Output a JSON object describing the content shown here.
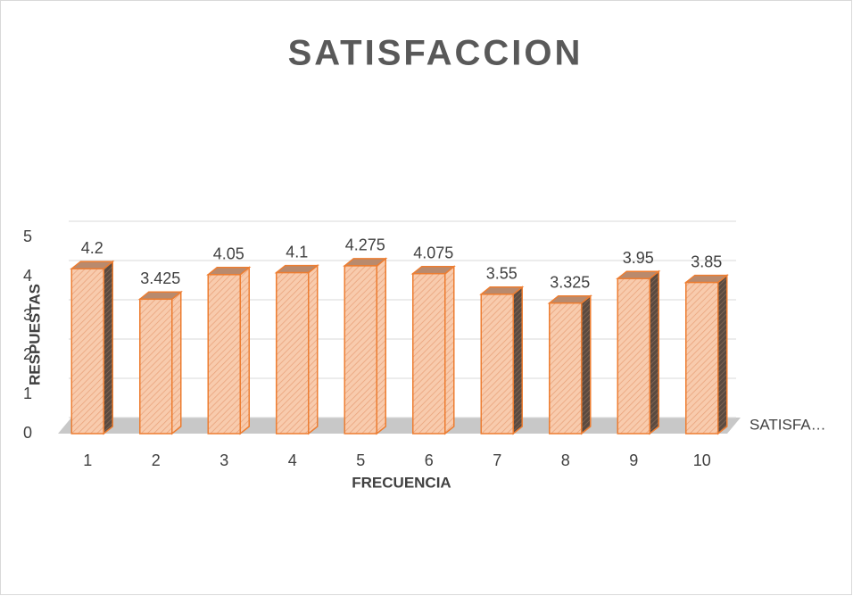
{
  "chart_data": {
    "type": "bar3d",
    "title": "SATISFACCION",
    "x_label": "FRECUENCIA",
    "y_label": "RESPUESTAS",
    "categories": [
      "1",
      "2",
      "3",
      "4",
      "5",
      "6",
      "7",
      "8",
      "9",
      "10"
    ],
    "series": [
      {
        "name": "SATISFA…",
        "color": "#f8cbad",
        "edge_color": "#ed7d31",
        "values": [
          4.2,
          3.425,
          4.05,
          4.1,
          4.275,
          4.075,
          3.55,
          3.325,
          3.95,
          3.85
        ]
      }
    ],
    "ylim": [
      0,
      5
    ],
    "yticks": [
      0,
      1,
      2,
      3,
      4,
      5
    ],
    "grid": true
  }
}
